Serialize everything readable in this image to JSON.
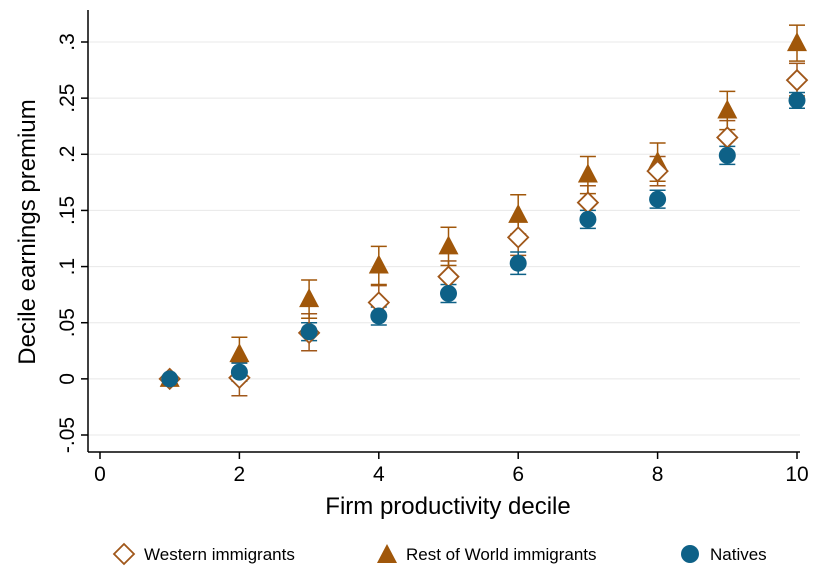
{
  "chart_data": {
    "type": "scatter",
    "xlabel": "Firm productivity decile",
    "ylabel": "Decile earnings premium",
    "xlim": [
      0,
      10
    ],
    "ylim": [
      -0.05,
      0.3
    ],
    "xticks": [
      0,
      2,
      4,
      6,
      8,
      10
    ],
    "xtick_labels": [
      "0",
      "2",
      "4",
      "6",
      "8",
      "10"
    ],
    "yticks": [
      -0.05,
      0,
      0.05,
      0.1,
      0.15,
      0.2,
      0.25,
      0.3
    ],
    "ytick_labels": [
      "-.05",
      "0",
      ".05",
      ".1",
      ".15",
      ".2",
      ".25",
      ".3"
    ],
    "grid": "horizontal",
    "legend_position": "bottom",
    "x": [
      1,
      2,
      3,
      4,
      5,
      6,
      7,
      8,
      9,
      10
    ],
    "series": [
      {
        "name": "Western immigrants",
        "marker": "hollow-diamond",
        "color": "#A0571A",
        "values": [
          0,
          0.001,
          0.041,
          0.068,
          0.091,
          0.126,
          0.157,
          0.185,
          0.215,
          0.266
        ],
        "ci_low": [
          0,
          -0.015,
          0.025,
          0.055,
          0.075,
          0.11,
          0.142,
          0.172,
          0.2,
          0.252
        ],
        "ci_high": [
          0,
          0.015,
          0.058,
          0.083,
          0.105,
          0.14,
          0.172,
          0.198,
          0.23,
          0.281
        ]
      },
      {
        "name": "Rest of World immigrants",
        "marker": "filled-triangle",
        "color": "#A0570A",
        "values": [
          0,
          0.022,
          0.071,
          0.101,
          0.118,
          0.146,
          0.182,
          0.193,
          0.239,
          0.299
        ],
        "ci_low": [
          0,
          0.008,
          0.054,
          0.084,
          0.101,
          0.129,
          0.165,
          0.176,
          0.222,
          0.283
        ],
        "ci_high": [
          0,
          0.037,
          0.088,
          0.118,
          0.135,
          0.164,
          0.198,
          0.21,
          0.256,
          0.315
        ]
      },
      {
        "name": "Natives",
        "marker": "filled-circle",
        "color": "#0E6187",
        "values": [
          0,
          0.006,
          0.042,
          0.056,
          0.076,
          0.103,
          0.142,
          0.16,
          0.199,
          0.248
        ],
        "ci_low": [
          0,
          -0.002,
          0.034,
          0.048,
          0.068,
          0.093,
          0.134,
          0.152,
          0.191,
          0.241
        ],
        "ci_high": [
          0,
          0.014,
          0.05,
          0.064,
          0.084,
          0.113,
          0.15,
          0.168,
          0.207,
          0.255
        ]
      }
    ]
  }
}
